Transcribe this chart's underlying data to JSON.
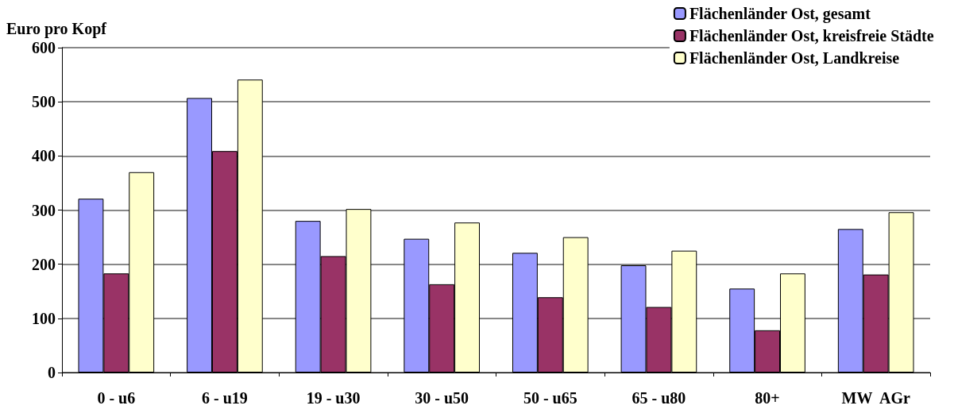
{
  "chart_data": {
    "type": "bar",
    "ylabel": "Euro pro Kopf",
    "categories": [
      "0 - u6",
      "6 - u19",
      "19 - u30",
      "30 - u50",
      "50 - u65",
      "65 - u80",
      "80+",
      "MW  AGr"
    ],
    "series": [
      {
        "name": "Flächenländer Ost, gesamt",
        "color": "#9999ff",
        "values": [
          321,
          507,
          280,
          247,
          221,
          198,
          155,
          265
        ]
      },
      {
        "name": "Flächenländer Ost, kreisfreie Städte",
        "color": "#993366",
        "values": [
          183,
          409,
          215,
          163,
          139,
          121,
          78,
          181
        ]
      },
      {
        "name": "Flächenländer Ost, Landkreise",
        "color": "#ffffcc",
        "values": [
          370,
          541,
          302,
          277,
          250,
          225,
          183,
          296
        ]
      }
    ],
    "ylim": [
      0,
      600
    ],
    "yticks": [
      0,
      100,
      200,
      300,
      400,
      500,
      600
    ],
    "grid": "y",
    "legend": "top right"
  }
}
